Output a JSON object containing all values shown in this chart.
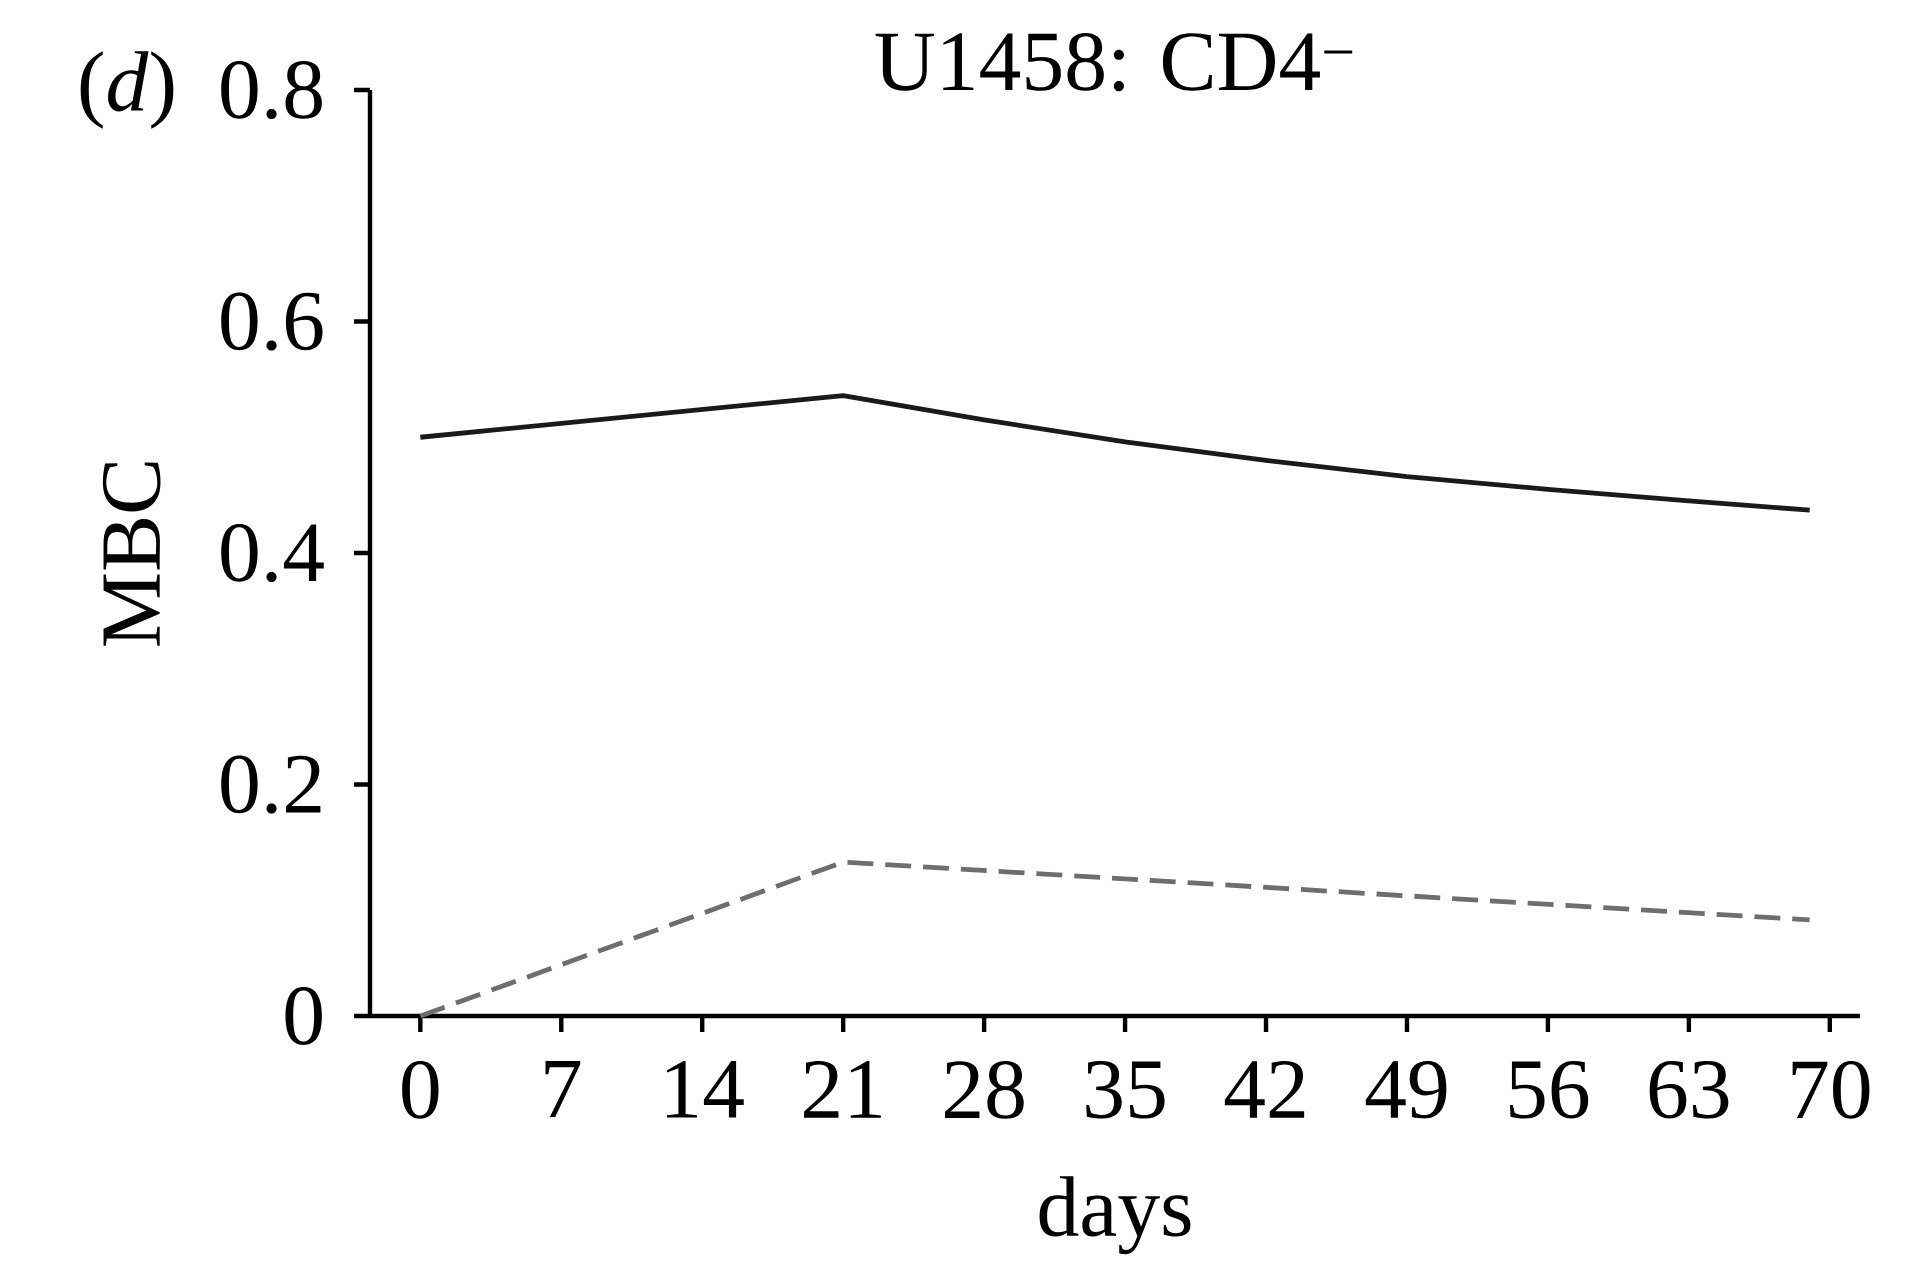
{
  "chart_data": {
    "type": "line",
    "title": "U1458: CD4$^{−}$",
    "xlabel": "days",
    "ylabel": "MBC",
    "annotations": [
      "(*d*)"
    ],
    "series": [
      {
        "color": "#1a1a1a",
        "line_style": "solid",
        "x": [
          0,
          21,
          28,
          35,
          42,
          49,
          56,
          63,
          69
        ],
        "values": [
          0.5,
          0.536,
          0.515,
          0.496,
          0.48,
          0.466,
          0.455,
          0.445,
          0.437
        ]
      },
      {
        "color": "#6e6e6e",
        "line_style": "dashed",
        "x": [
          0,
          21,
          69
        ],
        "values": [
          0,
          0.133,
          0.083
        ]
      }
    ],
    "xlim": [
      -2.5,
      71.5
    ],
    "ylim": [
      0,
      0.8
    ],
    "xticks": [
      0,
      7,
      14,
      21,
      28,
      35,
      42,
      49,
      56,
      63,
      70
    ],
    "yticks": [
      0,
      0.2,
      0.4,
      0.6,
      0.8
    ],
    "marker": "none"
  }
}
